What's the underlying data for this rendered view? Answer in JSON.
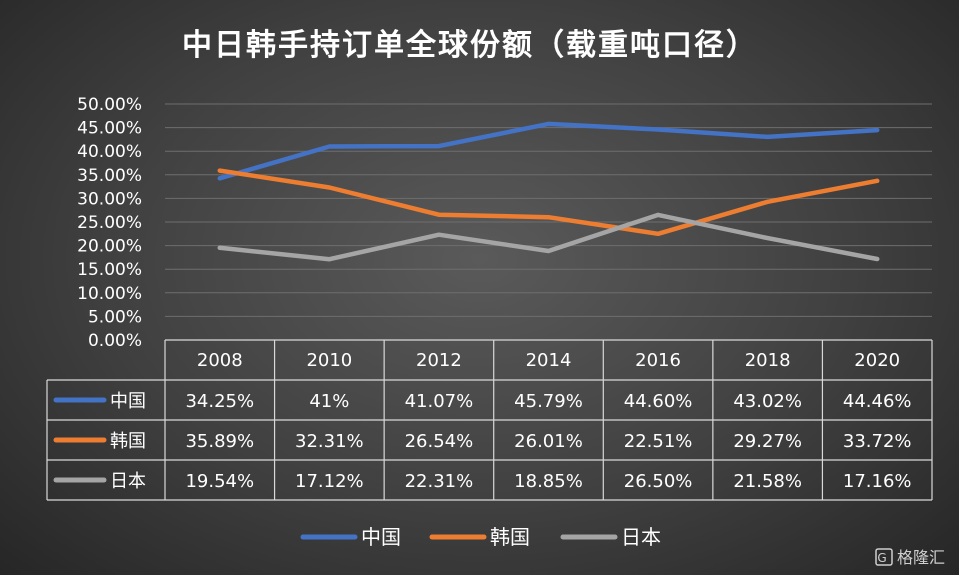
{
  "watermark": "格隆汇",
  "chart_data": {
    "type": "line",
    "title": "中日韩手持订单全球份额（载重吨口径）",
    "categories": [
      "2008",
      "2010",
      "2012",
      "2014",
      "2016",
      "2018",
      "2020"
    ],
    "y_ticks": [
      "50.00%",
      "45.00%",
      "40.00%",
      "35.00%",
      "30.00%",
      "25.00%",
      "20.00%",
      "15.00%",
      "10.00%",
      "5.00%",
      "0.00%"
    ],
    "ylim": [
      0,
      50
    ],
    "grid": true,
    "legend_position": "bottom",
    "series": [
      {
        "name": "中国",
        "color": "#4472C4",
        "values": [
          34.25,
          41,
          41.07,
          45.79,
          44.6,
          43.02,
          44.46
        ],
        "labels": [
          "34.25%",
          "41%",
          "41.07%",
          "45.79%",
          "44.60%",
          "43.02%",
          "44.46%"
        ]
      },
      {
        "name": "韩国",
        "color": "#ED7D31",
        "values": [
          35.89,
          32.31,
          26.54,
          26.01,
          22.51,
          29.27,
          33.72
        ],
        "labels": [
          "35.89%",
          "32.31%",
          "26.54%",
          "26.01%",
          "22.51%",
          "29.27%",
          "33.72%"
        ]
      },
      {
        "name": "日本",
        "color": "#A5A5A5",
        "values": [
          19.54,
          17.12,
          22.31,
          18.85,
          26.5,
          21.58,
          17.16
        ],
        "labels": [
          "19.54%",
          "17.12%",
          "22.31%",
          "18.85%",
          "26.50%",
          "21.58%",
          "17.16%"
        ]
      }
    ]
  }
}
